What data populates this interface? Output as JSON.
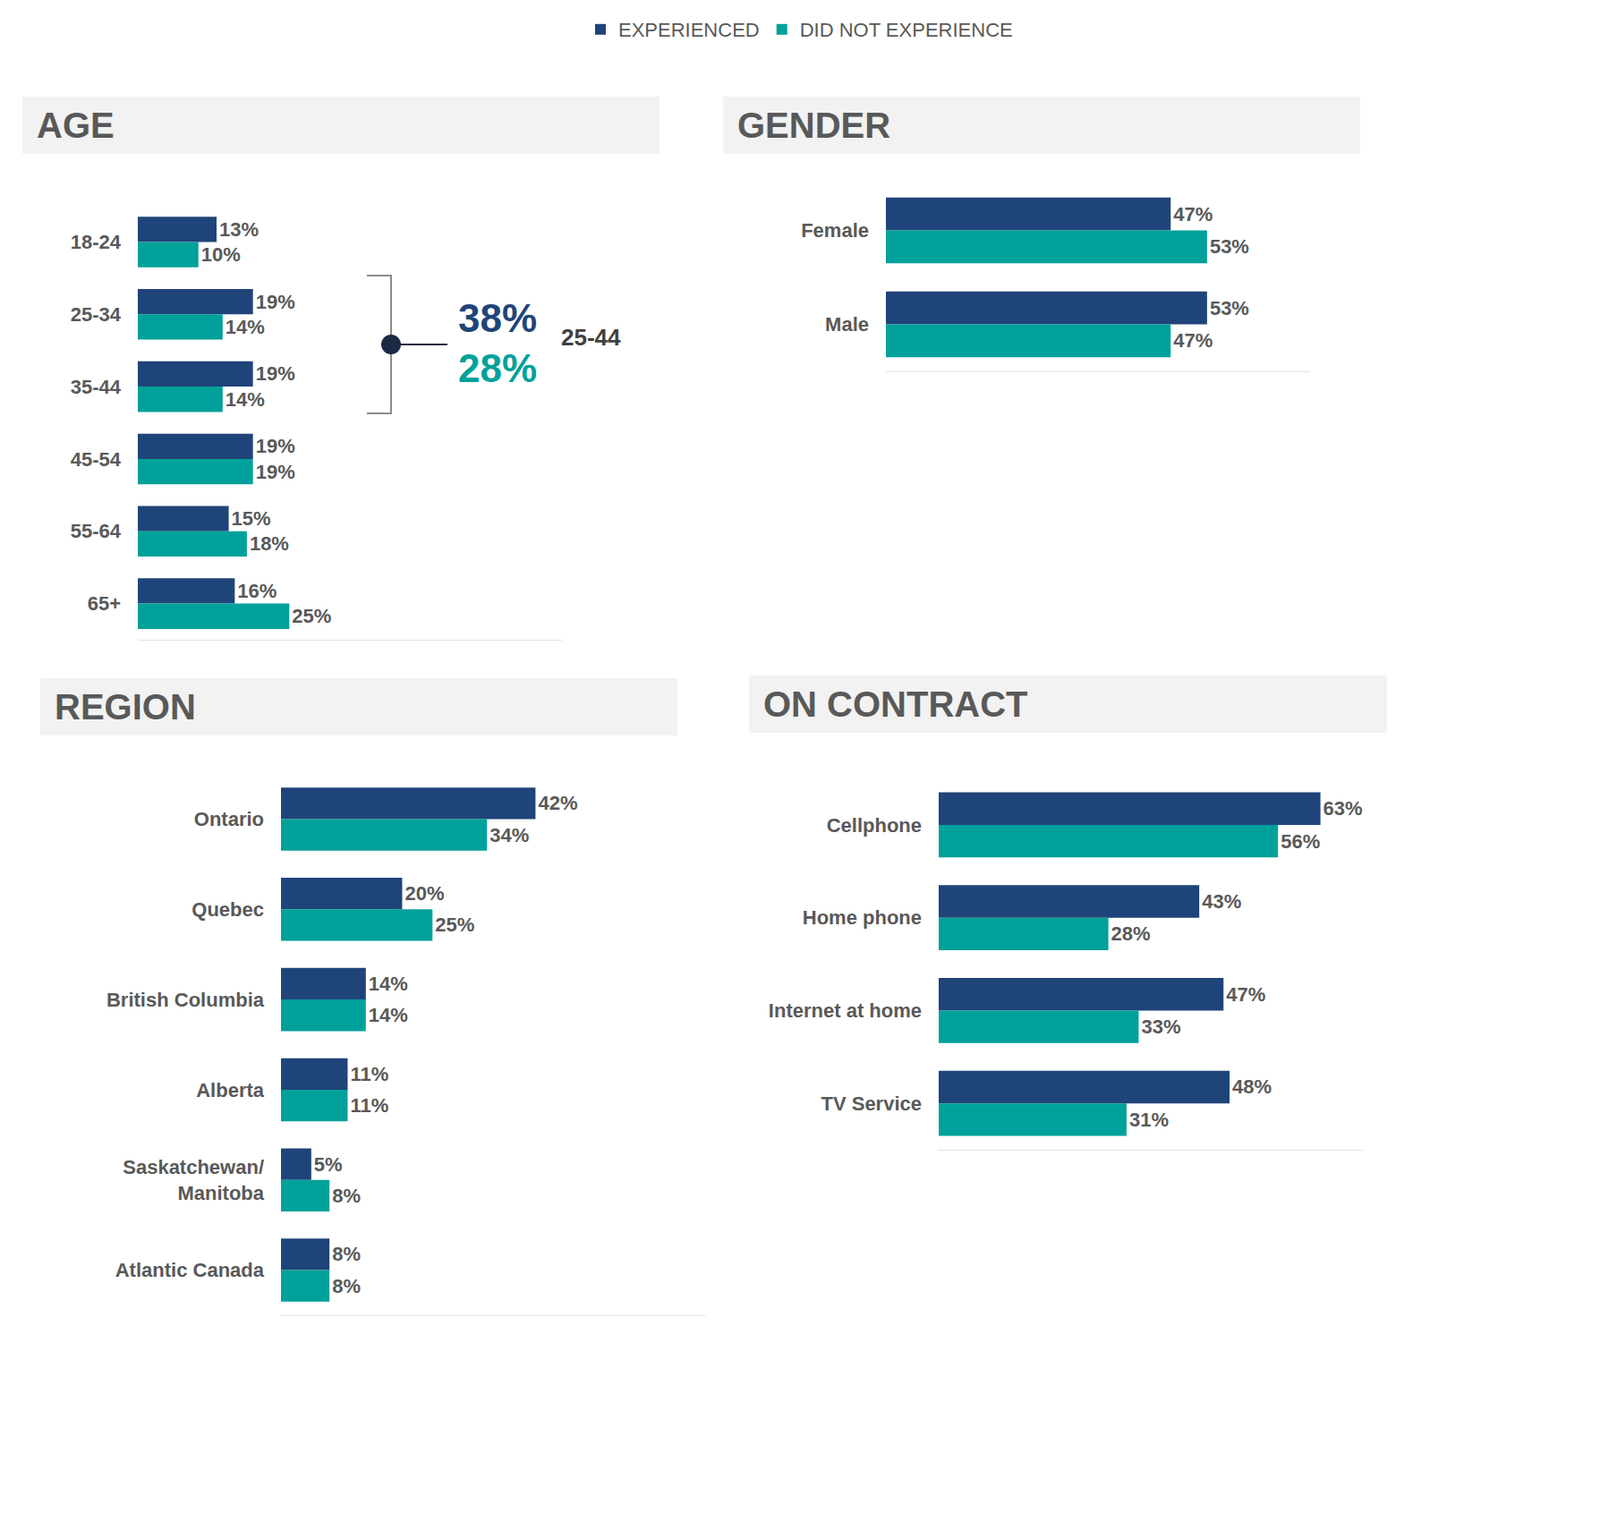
{
  "chart_data": [
    {
      "type": "bar",
      "title": "AGE",
      "orientation": "horizontal",
      "data_labels": true,
      "tick_labels": "y",
      "legend": "top",
      "xlim": [
        0,
        70
      ],
      "categories": [
        "18-24",
        "25-34",
        "35-44",
        "45-54",
        "55-64",
        "65+"
      ],
      "series": [
        {
          "name": "EXPERIENCED",
          "color": "#1F4479",
          "values": [
            13,
            19,
            19,
            19,
            15,
            16
          ],
          "value_labels": [
            "13%",
            "19%",
            "19%",
            "19%",
            "15%",
            "16%"
          ]
        },
        {
          "name": "DID NOT EXPERIENCE",
          "color": "#00A19A",
          "values": [
            10,
            14,
            14,
            19,
            18,
            25
          ],
          "value_labels": [
            "10%",
            "14%",
            "14%",
            "19%",
            "18%",
            "25%"
          ]
        }
      ],
      "annotations": [
        {
          "text": "25-44",
          "values": [
            38,
            28
          ],
          "value_labels": [
            "38%",
            "28%"
          ]
        }
      ]
    },
    {
      "type": "bar",
      "title": "GENDER",
      "orientation": "horizontal",
      "data_labels": true,
      "tick_labels": "y",
      "xlim": [
        0,
        70
      ],
      "categories": [
        "Female",
        "Male"
      ],
      "series": [
        {
          "name": "EXPERIENCED",
          "color": "#1F4479",
          "values": [
            47,
            53
          ],
          "value_labels": [
            "47%",
            "53%"
          ]
        },
        {
          "name": "DID NOT EXPERIENCE",
          "color": "#00A19A",
          "values": [
            53,
            47
          ],
          "value_labels": [
            "53%",
            "47%"
          ]
        }
      ]
    },
    {
      "type": "bar",
      "title": "REGION",
      "orientation": "horizontal",
      "data_labels": true,
      "tick_labels": "y",
      "xlim": [
        0,
        70
      ],
      "categories": [
        "Ontario",
        "Quebec",
        "British Columbia",
        "Alberta",
        "Saskatchewan/Manitoba",
        "Atlantic Canada"
      ],
      "series": [
        {
          "name": "EXPERIENCED",
          "color": "#1F4479",
          "values": [
            42,
            20,
            14,
            11,
            5,
            8
          ],
          "value_labels": [
            "42%",
            "20%",
            "14%",
            "11%",
            "5%",
            "8%"
          ]
        },
        {
          "name": "DID NOT EXPERIENCE",
          "color": "#00A19A",
          "values": [
            34,
            25,
            14,
            11,
            8,
            8
          ],
          "value_labels": [
            "34%",
            "25%",
            "14%",
            "11%",
            "8%",
            "8%"
          ]
        }
      ]
    },
    {
      "type": "bar",
      "title": "ON CONTRACT",
      "orientation": "horizontal",
      "data_labels": true,
      "tick_labels": "y",
      "xlim": [
        0,
        70
      ],
      "categories": [
        "Cellphone",
        "Home phone",
        "Internet at home",
        "TV Service"
      ],
      "series": [
        {
          "name": "EXPERIENCED",
          "color": "#1F4479",
          "values": [
            63,
            43,
            47,
            48
          ],
          "value_labels": [
            "63%",
            "43%",
            "47%",
            "48%"
          ]
        },
        {
          "name": "DID NOT EXPERIENCE",
          "color": "#00A19A",
          "values": [
            56,
            28,
            33,
            31
          ],
          "value_labels": [
            "56%",
            "28%",
            "33%",
            "31%"
          ]
        }
      ]
    }
  ]
}
